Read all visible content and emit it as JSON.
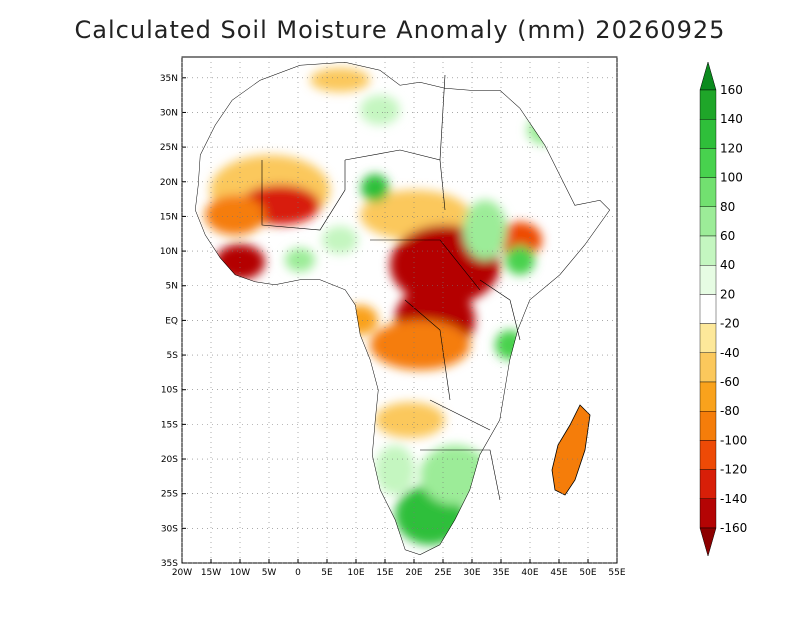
{
  "title": "Calculated Soil Moisture Anomaly (mm) 20260925",
  "map": {
    "lon_range": [
      -20,
      55
    ],
    "lat_range": [
      -35,
      38
    ],
    "lat_ticks": [
      "35N",
      "30N",
      "25N",
      "20N",
      "15N",
      "10N",
      "5N",
      "EQ",
      "5S",
      "10S",
      "15S",
      "20S",
      "25S",
      "30S",
      "35S"
    ],
    "lon_ticks": [
      "20W",
      "15W",
      "10W",
      "5W",
      "0",
      "5E",
      "10E",
      "15E",
      "20E",
      "25E",
      "30E",
      "35E",
      "40E",
      "45E",
      "50E",
      "55E"
    ],
    "grid": "dotted"
  },
  "colorbar": {
    "labels": [
      "160",
      "140",
      "120",
      "100",
      "80",
      "60",
      "40",
      "20",
      "-20",
      "-40",
      "-60",
      "-80",
      "-100",
      "-120",
      "-140",
      "-160"
    ],
    "colors": [
      "#0b8a1e",
      "#1fa629",
      "#2fbf3a",
      "#48d24e",
      "#72e070",
      "#9cec98",
      "#c4f6c0",
      "#e6fce3",
      "#ffffff",
      "#fde89a",
      "#fbc85c",
      "#f9a21c",
      "#f57d0a",
      "#ee4a06",
      "#d81f08",
      "#b40404",
      "#8c0000"
    ]
  }
}
